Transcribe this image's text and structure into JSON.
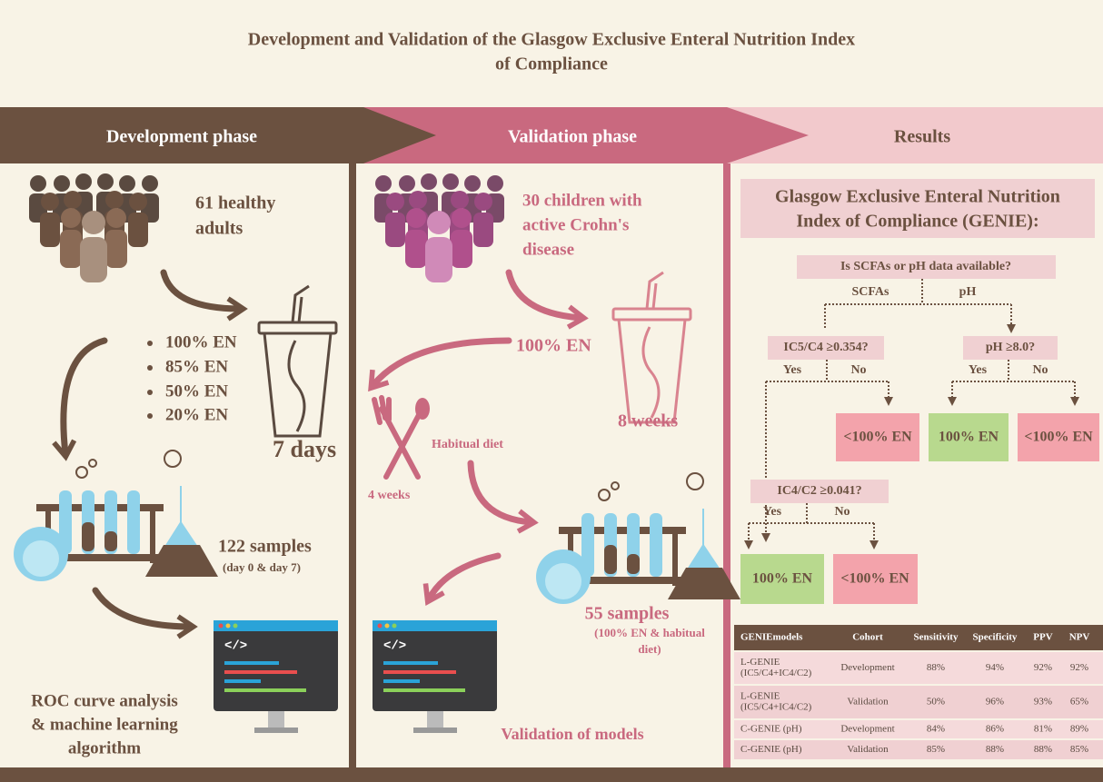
{
  "title": [
    "Development and Validation of the Glasgow Exclusive Enteral Nutrition Index",
    "of Compliance"
  ],
  "phases": [
    "Development phase",
    "Validation phase",
    "Results"
  ],
  "development": {
    "participants": [
      "61 healthy",
      "adults"
    ],
    "interventions": [
      "100% EN",
      "85% EN",
      "50% EN",
      "20% EN"
    ],
    "duration": "7 days",
    "samples": "122 samples",
    "samples_note": "(day 0 & day 7)",
    "analysis": [
      "ROC curve analysis",
      "& machine learning",
      "algorithm"
    ]
  },
  "validation": {
    "participants": [
      "30 children with",
      "active Crohn's",
      "disease"
    ],
    "intervention": "100% EN",
    "duration": "8 weeks",
    "comparator": "Habitual diet",
    "comparator_duration": "4 weeks",
    "samples": "55 samples",
    "samples_note": [
      "(100% EN & habitual",
      "diet)"
    ],
    "outcome": "Validation of models"
  },
  "results": {
    "heading": [
      "Glasgow Exclusive Enteral Nutrition",
      "Index of Compliance (GENIE):"
    ],
    "tree": {
      "root": "Is SCFAs or pH data available?",
      "branches": [
        "SCFAs",
        "pH"
      ],
      "q_scfa": "IC5/C4 ≥0.354?",
      "q_ph": "pH ≥8.0?",
      "q_scfa2": "IC4/C2 ≥0.041?",
      "yes": "Yes",
      "no": "No",
      "compliant": "100% EN",
      "noncompliant": "<100% EN"
    },
    "table": {
      "header": [
        "GENIEmodels",
        "Cohort",
        "Sensitivity",
        "Specificity",
        "PPV",
        "NPV"
      ],
      "rows": [
        {
          "model": [
            "L-GENIE",
            "(IC5/C4+IC4/C2)"
          ],
          "cells": [
            "Development",
            "88%",
            "94%",
            "92%",
            "92%"
          ]
        },
        {
          "model": [
            "L-GENIE",
            "(IC5/C4+IC4/C2)"
          ],
          "cells": [
            "Validation",
            "50%",
            "96%",
            "93%",
            "65%"
          ]
        },
        {
          "model": [
            "C-GENIE (pH)"
          ],
          "cells": [
            "Development",
            "84%",
            "86%",
            "81%",
            "89%"
          ]
        },
        {
          "model": [
            "C-GENIE (pH)"
          ],
          "cells": [
            "Validation",
            "85%",
            "88%",
            "88%",
            "85%"
          ]
        }
      ]
    }
  }
}
